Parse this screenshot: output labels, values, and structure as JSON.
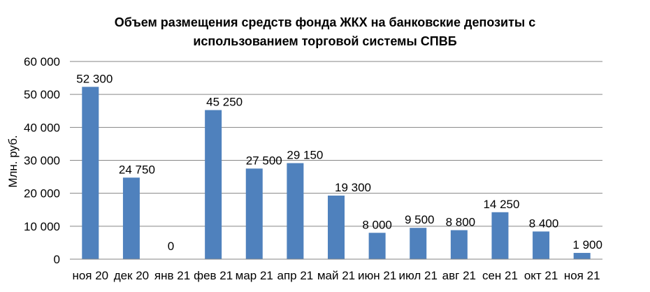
{
  "chart_data": {
    "type": "bar",
    "title_lines": [
      "Объем размещения средств фонда ЖКХ на банковские депозиты с",
      "использованием торговой системы СПВБ"
    ],
    "xlabel": "",
    "ylabel": "Млн. руб.",
    "ylim": [
      0,
      60000
    ],
    "yticks": [
      0,
      10000,
      20000,
      30000,
      40000,
      50000,
      60000
    ],
    "ytick_labels": [
      "0",
      "10 000",
      "20 000",
      "30 000",
      "40 000",
      "50 000",
      "60 000"
    ],
    "categories": [
      "ноя 20",
      "дек 20",
      "янв 21",
      "фев 21",
      "мар 21",
      "апр 21",
      "май 21",
      "июн 21",
      "июл 21",
      "авг 21",
      "сен 21",
      "окт 21",
      "ноя 21"
    ],
    "values": [
      52300,
      24750,
      0,
      45250,
      27500,
      29150,
      19300,
      8000,
      9500,
      8800,
      14250,
      8400,
      1900
    ],
    "value_labels": [
      "52 300",
      "24 750",
      "0",
      "45 250",
      "27 500",
      "29 150",
      "19 300",
      "8 000",
      "9 500",
      "8 800",
      "14 250",
      "8 400",
      "1 900"
    ],
    "grid": true,
    "legend": "none",
    "colors": {
      "bar": "#4f81bd",
      "grid": "#868686",
      "axis": "#868686",
      "text": "#000000"
    }
  }
}
